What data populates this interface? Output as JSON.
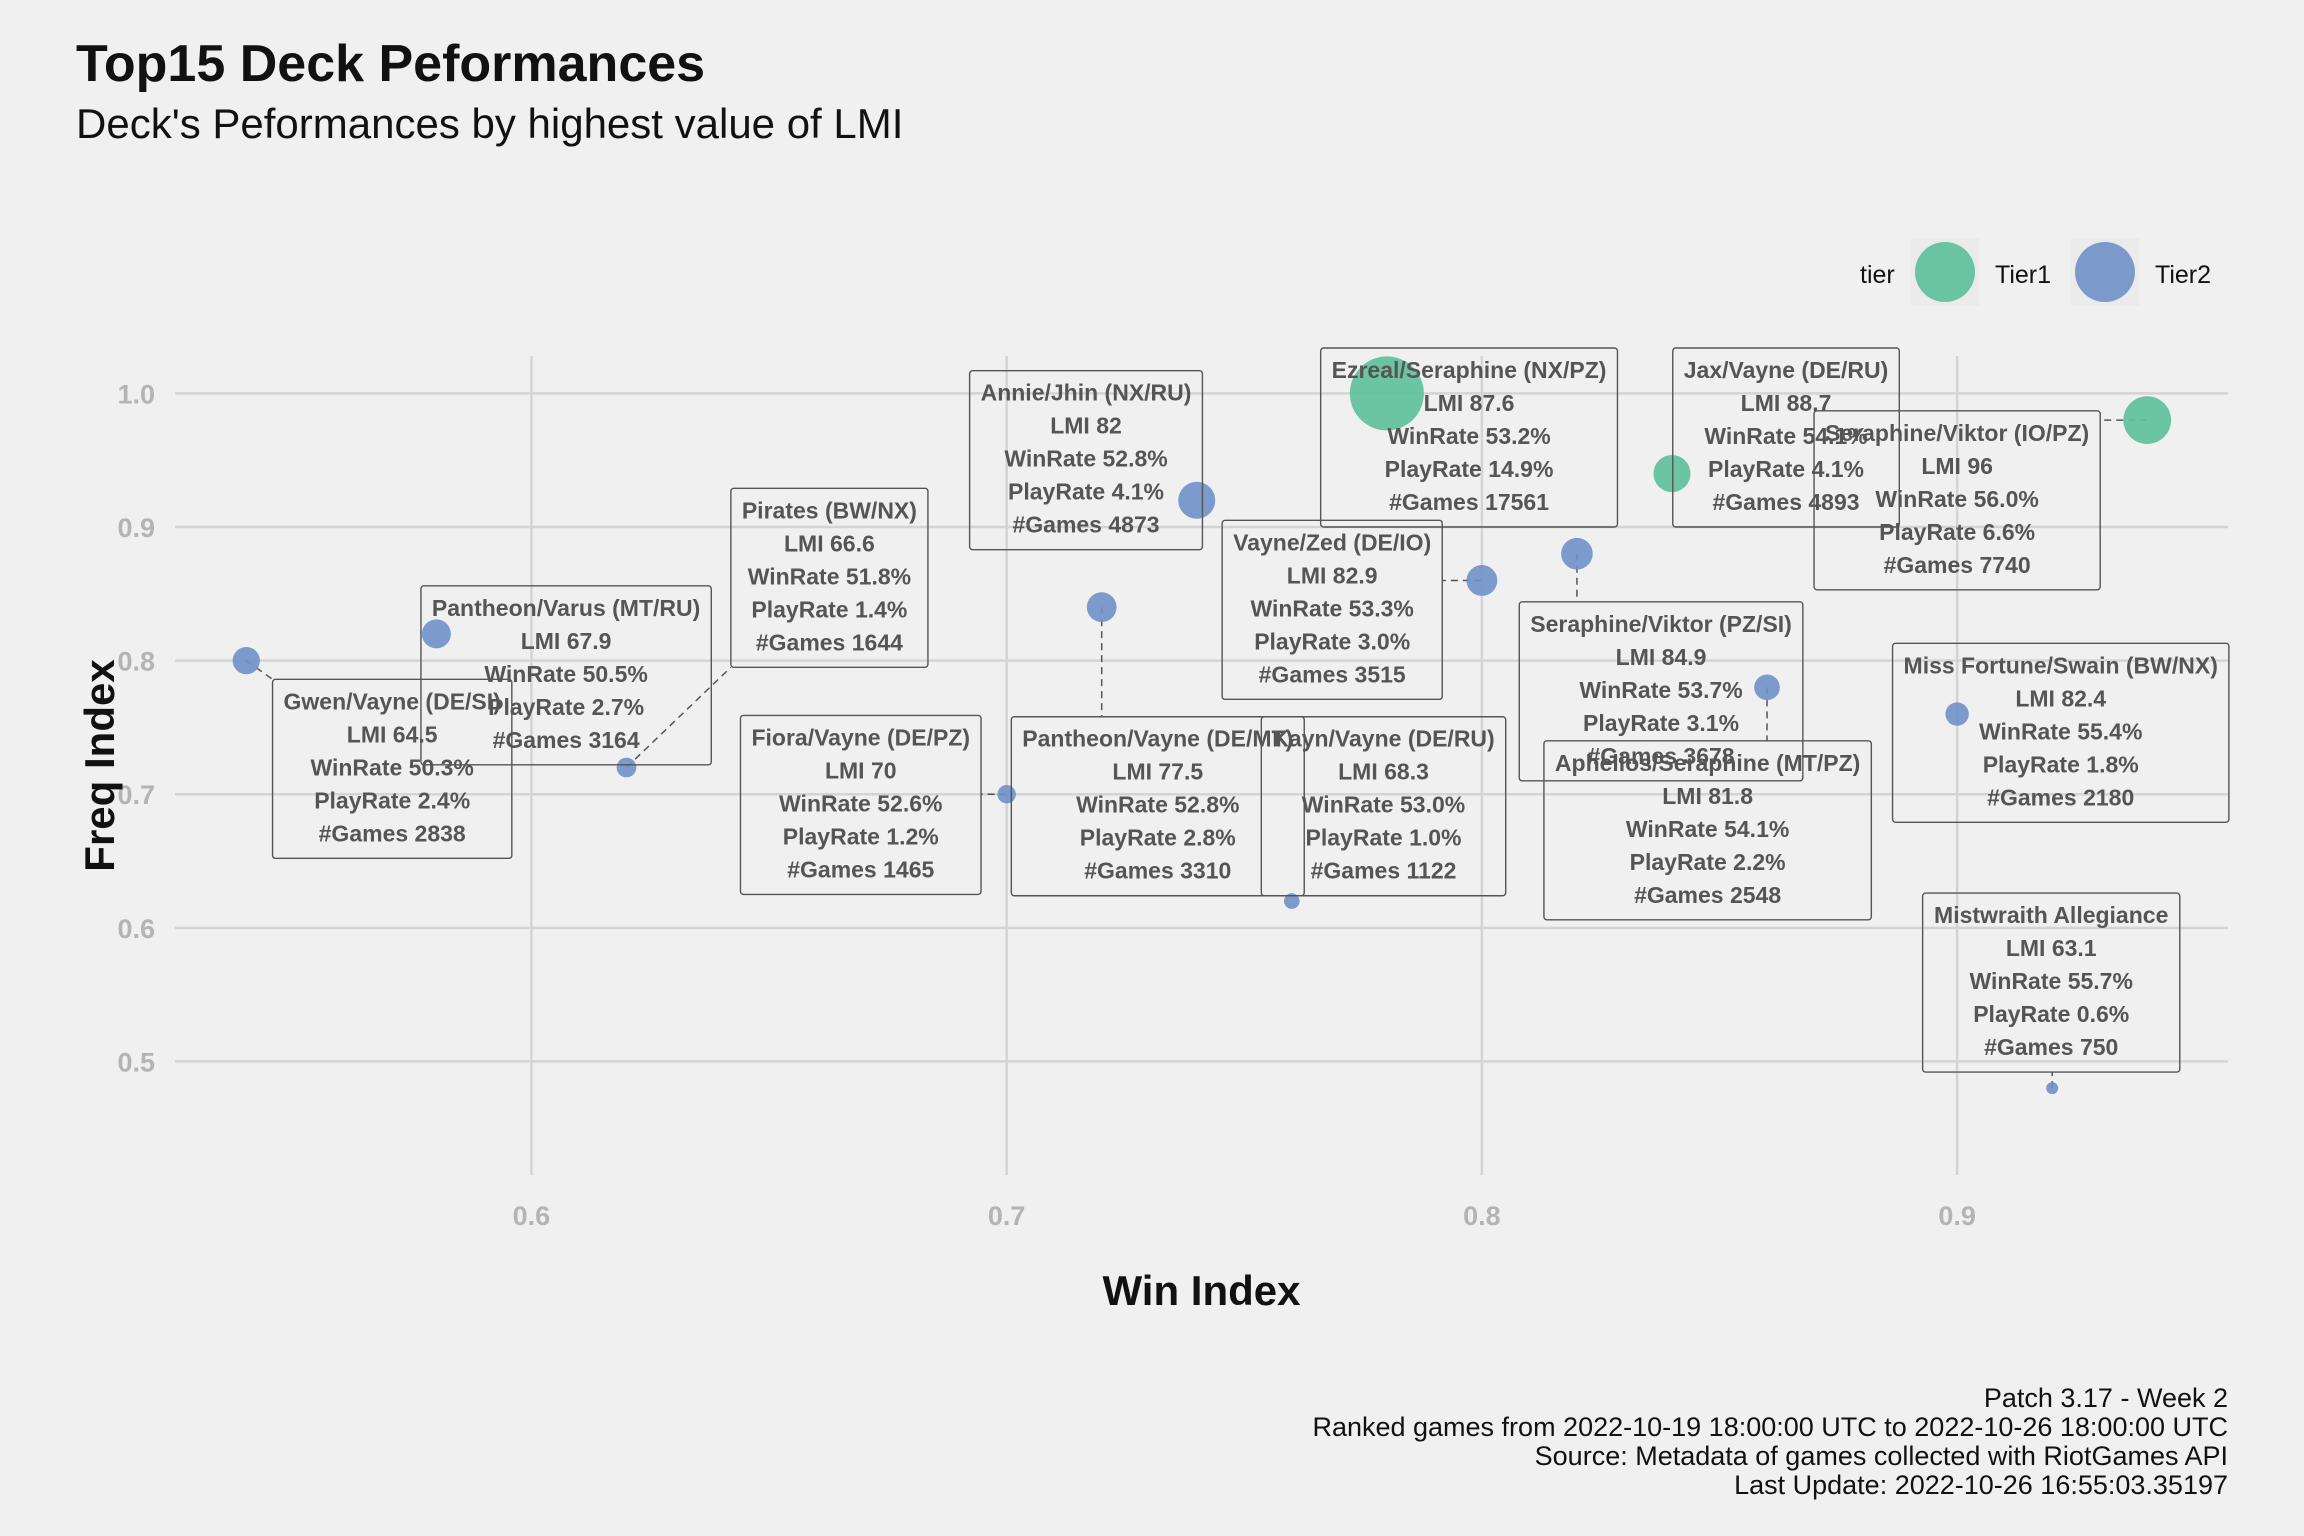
{
  "title": "Top15 Deck Peformances",
  "subtitle": "Deck's Peformances by highest value of LMI",
  "caption": [
    "Patch 3.17 - Week 2",
    "Ranked games from 2022-10-19 18:00:00 UTC to 2022-10-26 18:00:00 UTC",
    "Source: Metadata of games collected with RiotGames API",
    "Last Update: 2022-10-26 16:55:03.35197"
  ],
  "colors": {
    "Tier1": "#5cbf9a",
    "Tier2": "#7090c8",
    "background": "#f0f0f0",
    "grid": "#d4d4d4",
    "label_border": "#555555",
    "label_text": "#555555"
  },
  "chart_data": {
    "type": "scatter",
    "xlabel": "Win Index",
    "ylabel": "Freq Index",
    "xlim": [
      0.525,
      0.957
    ],
    "ylim": [
      0.415,
      1.028
    ],
    "xticks": [
      "0.6",
      "0.7",
      "0.8",
      "0.9"
    ],
    "yticks": [
      "0.5",
      "0.6",
      "0.7",
      "0.8",
      "0.9",
      "1.0"
    ],
    "grid": true,
    "legend": {
      "title": "tier",
      "position": "top-right",
      "entries": [
        "Tier1",
        "Tier2"
      ]
    },
    "points": [
      {
        "deck": "Seraphine/Viktor (IO/PZ)",
        "tier": "Tier1",
        "x": 0.94,
        "y": 0.98,
        "lmi": "96",
        "winrate": "56.0%",
        "playrate": "6.6%",
        "games": "7740"
      },
      {
        "deck": "Jax/Vayne (DE/RU)",
        "tier": "Tier1",
        "x": 0.84,
        "y": 0.94,
        "lmi": "88.7",
        "winrate": "54.1%",
        "playrate": "4.1%",
        "games": "4893"
      },
      {
        "deck": "Ezreal/Seraphine (NX/PZ)",
        "tier": "Tier1",
        "x": 0.78,
        "y": 1.0,
        "lmi": "87.6",
        "winrate": "53.2%",
        "playrate": "14.9%",
        "games": "17561"
      },
      {
        "deck": "Seraphine/Viktor (PZ/SI)",
        "tier": "Tier2",
        "x": 0.82,
        "y": 0.88,
        "lmi": "84.9",
        "winrate": "53.7%",
        "playrate": "3.1%",
        "games": "3678"
      },
      {
        "deck": "Vayne/Zed (DE/IO)",
        "tier": "Tier2",
        "x": 0.8,
        "y": 0.86,
        "lmi": "82.9",
        "winrate": "53.3%",
        "playrate": "3.0%",
        "games": "3515"
      },
      {
        "deck": "Miss Fortune/Swain (BW/NX)",
        "tier": "Tier2",
        "x": 0.9,
        "y": 0.76,
        "lmi": "82.4",
        "winrate": "55.4%",
        "playrate": "1.8%",
        "games": "2180"
      },
      {
        "deck": "Annie/Jhin (NX/RU)",
        "tier": "Tier2",
        "x": 0.74,
        "y": 0.92,
        "lmi": "82",
        "winrate": "52.8%",
        "playrate": "4.1%",
        "games": "4873"
      },
      {
        "deck": "Aphelios/Seraphine (MT/PZ)",
        "tier": "Tier2",
        "x": 0.86,
        "y": 0.78,
        "lmi": "81.8",
        "winrate": "54.1%",
        "playrate": "2.2%",
        "games": "2548"
      },
      {
        "deck": "Pantheon/Vayne (DE/MT)",
        "tier": "Tier2",
        "x": 0.72,
        "y": 0.84,
        "lmi": "77.5",
        "winrate": "52.8%",
        "playrate": "2.8%",
        "games": "3310"
      },
      {
        "deck": "Fiora/Vayne (DE/PZ)",
        "tier": "Tier2",
        "x": 0.7,
        "y": 0.7,
        "lmi": "70",
        "winrate": "52.6%",
        "playrate": "1.2%",
        "games": "1465"
      },
      {
        "deck": "Kayn/Vayne (DE/RU)",
        "tier": "Tier2",
        "x": 0.76,
        "y": 0.62,
        "lmi": "68.3",
        "winrate": "53.0%",
        "playrate": "1.0%",
        "games": "1122"
      },
      {
        "deck": "Pantheon/Varus (MT/RU)",
        "tier": "Tier2",
        "x": 0.58,
        "y": 0.82,
        "lmi": "67.9",
        "winrate": "50.5%",
        "playrate": "2.7%",
        "games": "3164"
      },
      {
        "deck": "Pirates (BW/NX)",
        "tier": "Tier2",
        "x": 0.62,
        "y": 0.72,
        "lmi": "66.6",
        "winrate": "51.8%",
        "playrate": "1.4%",
        "games": "1644"
      },
      {
        "deck": "Gwen/Vayne (DE/SI)",
        "tier": "Tier2",
        "x": 0.54,
        "y": 0.8,
        "lmi": "64.5",
        "winrate": "50.3%",
        "playrate": "2.4%",
        "games": "2838"
      },
      {
        "deck": "Mistwraith Allegiance",
        "tier": "Tier2",
        "x": 0.92,
        "y": 0.48,
        "lmi": "63.1",
        "winrate": "55.7%",
        "playrate": "0.6%",
        "games": "750"
      }
    ],
    "label_positions": {
      "Seraphine/Viktor (IO/PZ)": [
        0.9,
        0.92
      ],
      "Jax/Vayne (DE/RU)": [
        0.864,
        0.967
      ],
      "Ezreal/Seraphine (NX/PZ)": [
        0.7973,
        0.967
      ],
      "Seraphine/Viktor (PZ/SI)": [
        0.8377,
        0.777
      ],
      "Vayne/Zed (DE/IO)": [
        0.7685,
        0.838
      ],
      "Miss Fortune/Swain (BW/NX)": [
        0.9218,
        0.746
      ],
      "Annie/Jhin (NX/RU)": [
        0.7167,
        0.95
      ],
      "Aphelios/Seraphine (MT/PZ)": [
        0.8475,
        0.673
      ],
      "Pantheon/Vayne (DE/MT)": [
        0.7318,
        0.691
      ],
      "Fiora/Vayne (DE/PZ)": [
        0.6693,
        0.692
      ],
      "Kayn/Vayne (DE/RU)": [
        0.7793,
        0.691
      ],
      "Pantheon/Varus (MT/RU)": [
        0.6073,
        0.789
      ],
      "Pirates (BW/NX)": [
        0.6627,
        0.862
      ],
      "Gwen/Vayne (DE/SI)": [
        0.5707,
        0.719
      ],
      "Mistwraith Allegiance": [
        0.9198,
        0.559
      ]
    }
  }
}
